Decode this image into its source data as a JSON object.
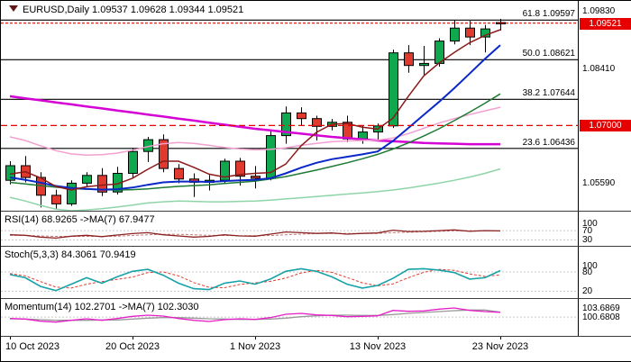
{
  "header": {
    "title": "EURUSD,Daily",
    "ohlc": "1.09537 1.09628 1.09344 1.09521"
  },
  "colors": {
    "background": "#ffffff",
    "candle_up": "#0fa84e",
    "candle_down": "#e03a2f",
    "badge_red": "#e60000",
    "axis_line": "#000000"
  },
  "chart_data": [
    {
      "type": "candlestick",
      "title": "EURUSD,Daily",
      "x": [
        "10 Oct",
        "11 Oct",
        "12 Oct",
        "13 Oct",
        "16 Oct",
        "17 Oct",
        "18 Oct",
        "19 Oct",
        "20 Oct",
        "23 Oct",
        "24 Oct",
        "25 Oct",
        "26 Oct",
        "27 Oct",
        "30 Oct",
        "31 Oct",
        "1 Nov",
        "2 Nov",
        "3 Nov",
        "6 Nov",
        "7 Nov",
        "8 Nov",
        "9 Nov",
        "10 Nov",
        "13 Nov",
        "14 Nov",
        "15 Nov",
        "16 Nov",
        "17 Nov",
        "20 Nov",
        "21 Nov",
        "22 Nov",
        "23 Nov"
      ],
      "open": [
        1.0565,
        1.0601,
        1.0572,
        1.0528,
        1.0507,
        1.0558,
        1.0577,
        1.0536,
        1.0582,
        1.0636,
        1.0665,
        1.0594,
        1.0568,
        1.056,
        1.0565,
        1.0612,
        1.0575,
        1.057,
        1.0675,
        1.0731,
        1.0717,
        1.0698,
        1.0708,
        1.0667,
        1.0684,
        1.0699,
        1.0879,
        1.0848,
        1.0853,
        1.0908,
        1.094,
        1.0918,
        1.09537
      ],
      "high": [
        1.0612,
        1.0625,
        1.0585,
        1.0542,
        1.0565,
        1.0585,
        1.0595,
        1.0598,
        1.0645,
        1.0672,
        1.0678,
        1.0605,
        1.0582,
        1.0578,
        1.0618,
        1.062,
        1.06,
        1.0688,
        1.0747,
        1.0745,
        1.0724,
        1.0716,
        1.0724,
        1.07,
        1.0705,
        1.0887,
        1.0898,
        1.0896,
        1.0915,
        1.096,
        1.0958,
        1.0948,
        1.09628
      ],
      "low": [
        1.0555,
        1.056,
        1.0498,
        1.0495,
        1.0502,
        1.0548,
        1.0526,
        1.053,
        1.057,
        1.061,
        1.0585,
        1.0558,
        1.0524,
        1.054,
        1.0558,
        1.0552,
        1.0545,
        1.0565,
        1.0655,
        1.07,
        1.0663,
        1.0688,
        1.0659,
        1.0655,
        1.0664,
        1.0694,
        1.083,
        1.0825,
        1.0845,
        1.09,
        1.0898,
        1.088,
        1.09344
      ],
      "close": [
        1.0601,
        1.0572,
        1.0528,
        1.0507,
        1.0558,
        1.0577,
        1.0536,
        1.0582,
        1.0636,
        1.0665,
        1.0594,
        1.0568,
        1.056,
        1.0565,
        1.0612,
        1.0575,
        1.057,
        1.0675,
        1.0731,
        1.0717,
        1.0698,
        1.0708,
        1.0667,
        1.0684,
        1.0699,
        1.0879,
        1.0848,
        1.0853,
        1.0908,
        1.094,
        1.0918,
        1.0938,
        1.09521
      ],
      "ylim": [
        1.049,
        1.1007
      ],
      "y_ticks": [
        {
          "text": "1.09830",
          "price": 1.0983
        },
        {
          "text": "1.08410",
          "price": 1.0841
        },
        {
          "text": "1.05590",
          "price": 1.0559
        }
      ],
      "price_badges": [
        {
          "text": "1.09521",
          "price": 1.09521,
          "name": "bid-price-badge"
        },
        {
          "text": "1.07000",
          "price": 1.07,
          "name": "hline-price-badge"
        }
      ],
      "x_ticks": [
        {
          "text": "10 Oct 2023",
          "index": 0
        },
        {
          "text": "20 Oct 2023",
          "index": 8
        },
        {
          "text": "1 Nov 2023",
          "index": 16
        },
        {
          "text": "13 Nov 2023",
          "index": 24
        },
        {
          "text": "23 Nov 2023",
          "index": 32
        }
      ],
      "hlines": [
        {
          "name": "fib-61.8-line",
          "price": 1.09597,
          "color": "#000000",
          "style": "solid",
          "label": "61.8 1.09597"
        },
        {
          "name": "fib-50.0-line",
          "price": 1.08621,
          "color": "#000000",
          "style": "solid",
          "label": "50.0 1.08621"
        },
        {
          "name": "fib-38.2-line",
          "price": 1.07644,
          "color": "#000000",
          "style": "solid",
          "label": "38.2 1.07644"
        },
        {
          "name": "fib-23.6-line",
          "price": 1.06436,
          "color": "#000000",
          "style": "solid",
          "label": "23.6 1.06436"
        },
        {
          "name": "horizontal-support-line",
          "price": 1.07,
          "color": "#e60000",
          "style": "dashed"
        },
        {
          "name": "bid-price-line",
          "price": 1.09521,
          "color": "#e60000",
          "style": "dotted"
        }
      ],
      "overlays": [
        {
          "name": "ma-magenta-slow",
          "color": "#d400d4",
          "width": 2.5,
          "values": [
            1.0772,
            1.0767,
            1.0762,
            1.0757,
            1.0752,
            1.0747,
            1.0742,
            1.0737,
            1.0732,
            1.0727,
            1.0722,
            1.0717,
            1.0712,
            1.0707,
            1.0702,
            1.0697,
            1.0692,
            1.0688,
            1.0684,
            1.068,
            1.0676,
            1.0672,
            1.0669,
            1.0666,
            1.0663,
            1.0661,
            1.0659,
            1.0657,
            1.0656,
            1.0655,
            1.0654,
            1.0654,
            1.0654
          ]
        },
        {
          "name": "band-pink",
          "color": "#f2a0d0",
          "width": 1.5,
          "values": [
            1.0672,
            1.0663,
            1.065,
            1.0638,
            1.063,
            1.0627,
            1.0628,
            1.0632,
            1.0639,
            1.0648,
            1.0655,
            1.0658,
            1.0656,
            1.0651,
            1.0646,
            1.0642,
            1.064,
            1.0641,
            1.0645,
            1.0651,
            1.0656,
            1.066,
            1.0662,
            1.0663,
            1.0664,
            1.0669,
            1.068,
            1.0693,
            1.0706,
            1.0717,
            1.0727,
            1.0736,
            1.0745
          ]
        },
        {
          "name": "band-light-green",
          "color": "#8fd4a8",
          "width": 1.5,
          "values": [
            1.0523,
            1.0514,
            1.0503,
            1.0494,
            1.049,
            1.0492,
            1.0495,
            1.0499,
            1.0504,
            1.0509,
            1.0512,
            1.0514,
            1.0513,
            1.0512,
            1.0512,
            1.0513,
            1.0514,
            1.0516,
            1.0519,
            1.0522,
            1.0525,
            1.0528,
            1.0531,
            1.0534,
            1.0537,
            1.0541,
            1.0546,
            1.0552,
            1.0558,
            1.0565,
            1.0573,
            1.0582,
            1.0593
          ]
        },
        {
          "name": "ma-green",
          "color": "#1e7a34",
          "width": 1.5,
          "values": [
            1.056,
            1.0556,
            1.0552,
            1.0548,
            1.0545,
            1.0543,
            1.0542,
            1.0541,
            1.0542,
            1.0544,
            1.0547,
            1.055,
            1.0552,
            1.0554,
            1.0557,
            1.056,
            1.0563,
            1.0568,
            1.0574,
            1.0582,
            1.059,
            1.0599,
            1.0608,
            1.0618,
            1.0629,
            1.0642,
            1.0657,
            1.0674,
            1.0692,
            1.0712,
            1.0733,
            1.0755,
            1.0778
          ]
        },
        {
          "name": "ma-blue",
          "color": "#0a28c8",
          "width": 2,
          "values": [
            1.0572,
            1.0566,
            1.0559,
            1.0551,
            1.0546,
            1.0544,
            1.0542,
            1.0543,
            1.0547,
            1.0554,
            1.056,
            1.0562,
            1.0562,
            1.0561,
            1.0563,
            1.0565,
            1.0566,
            1.057,
            1.0582,
            1.0596,
            1.0608,
            1.0617,
            1.0623,
            1.0629,
            1.0636,
            1.0662,
            1.0694,
            1.0726,
            1.0758,
            1.0792,
            1.0828,
            1.0864,
            1.0898
          ]
        },
        {
          "name": "ma-maroon",
          "color": "#8b1a1a",
          "width": 1.5,
          "values": [
            1.058,
            1.0586,
            1.0571,
            1.055,
            1.0541,
            1.0549,
            1.0553,
            1.0556,
            1.057,
            1.0592,
            1.0612,
            1.0612,
            1.0597,
            1.058,
            1.0573,
            1.0579,
            1.0582,
            1.0584,
            1.0605,
            1.065,
            1.0683,
            1.0703,
            1.0705,
            1.0696,
            1.0691,
            1.0718,
            1.0772,
            1.0822,
            1.0854,
            1.088,
            1.0904,
            1.0922,
            1.0936
          ]
        }
      ]
    },
    {
      "type": "line",
      "name": "RSI",
      "label": "RSI(14) 68.9265 ->MA(7) 67.9477",
      "ylim": [
        0,
        100
      ],
      "render_ylim": [
        20,
        140
      ],
      "levels": [
        70,
        30
      ],
      "axis": [
        {
          "text": "100",
          "value": 100
        },
        {
          "text": "70",
          "value": 70
        },
        {
          "text": "30",
          "value": 30
        }
      ],
      "series": [
        {
          "name": "rsi-line",
          "color": "#8b2323",
          "width": 1.3,
          "values": [
            52,
            50,
            42,
            38,
            46,
            50,
            44,
            51,
            57,
            61,
            52,
            47,
            42,
            45,
            52,
            47,
            46,
            55,
            64,
            61,
            58,
            60,
            55,
            58,
            60,
            72,
            66,
            67,
            70,
            73,
            67,
            70,
            68.9
          ]
        },
        {
          "name": "rsi-ma-line",
          "color": "#c87777",
          "width": 1,
          "dash": true,
          "values": [
            50,
            49,
            47,
            45,
            45,
            45,
            45,
            46,
            49,
            52,
            54,
            54,
            52,
            50,
            49,
            48,
            48,
            49,
            52,
            55,
            57,
            58,
            58,
            58,
            58,
            61,
            63,
            65,
            67,
            69,
            69,
            69,
            67.9
          ]
        }
      ]
    },
    {
      "type": "line",
      "name": "Stochastic",
      "label": "Stoch(5,3,3) 84.3061 70.9419",
      "ylim": [
        0,
        100
      ],
      "render_ylim": [
        10,
        150
      ],
      "levels": [
        80,
        20
      ],
      "axis": [
        {
          "text": "100",
          "value": 100
        },
        {
          "text": "80",
          "value": 80
        },
        {
          "text": "20",
          "value": 20
        }
      ],
      "series": [
        {
          "name": "stoch-main-line",
          "color": "#17a2a8",
          "width": 1.6,
          "values": [
            72,
            62,
            35,
            22,
            42,
            62,
            45,
            65,
            82,
            88,
            70,
            45,
            28,
            25,
            45,
            52,
            42,
            58,
            82,
            90,
            82,
            65,
            42,
            30,
            38,
            60,
            88,
            90,
            86,
            78,
            58,
            62,
            84.3
          ]
        },
        {
          "name": "stoch-signal-line",
          "color": "#e03a2f",
          "width": 1,
          "dash": true,
          "values": [
            75,
            68,
            50,
            33,
            30,
            42,
            50,
            57,
            64,
            78,
            80,
            68,
            47,
            32,
            31,
            41,
            46,
            51,
            61,
            77,
            85,
            79,
            63,
            46,
            37,
            43,
            62,
            79,
            88,
            85,
            74,
            66,
            70.9
          ]
        }
      ]
    },
    {
      "type": "line",
      "name": "Momentum",
      "label": "Momentum(14) 102.2701 ->MA(7) 102.3030",
      "ylim": [
        98.5,
        104.2
      ],
      "render_ylim": [
        95.6,
        105.8
      ],
      "levels": [
        100.6808
      ],
      "axis": [
        {
          "text": "103.6869",
          "value": 103.6869
        },
        {
          "text": "100.6808",
          "value": 100.6808
        }
      ],
      "series": [
        {
          "name": "momentum-line",
          "color": "#e61ec8",
          "width": 1.3,
          "values": [
            100.2,
            100.0,
            99.3,
            99.0,
            99.6,
            100.1,
            99.6,
            100.2,
            100.9,
            101.3,
            101.0,
            100.2,
            99.6,
            99.2,
            99.8,
            100.1,
            99.9,
            100.5,
            101.6,
            101.9,
            101.4,
            101.2,
            100.8,
            100.9,
            101.1,
            102.9,
            102.6,
            102.7,
            103.3,
            103.7,
            102.9,
            102.5,
            102.27
          ]
        },
        {
          "name": "momentum-ma-line",
          "color": "#999999",
          "width": 1.3,
          "values": [
            100.1,
            100.0,
            99.8,
            99.6,
            99.6,
            99.6,
            99.7,
            99.7,
            100.0,
            100.3,
            100.5,
            100.5,
            100.3,
            100.1,
            100.0,
            99.9,
            99.9,
            100.0,
            100.3,
            100.8,
            101.1,
            101.3,
            101.3,
            101.2,
            101.2,
            101.5,
            101.9,
            102.2,
            102.5,
            102.8,
            103.0,
            103.0,
            102.3
          ]
        }
      ]
    }
  ]
}
